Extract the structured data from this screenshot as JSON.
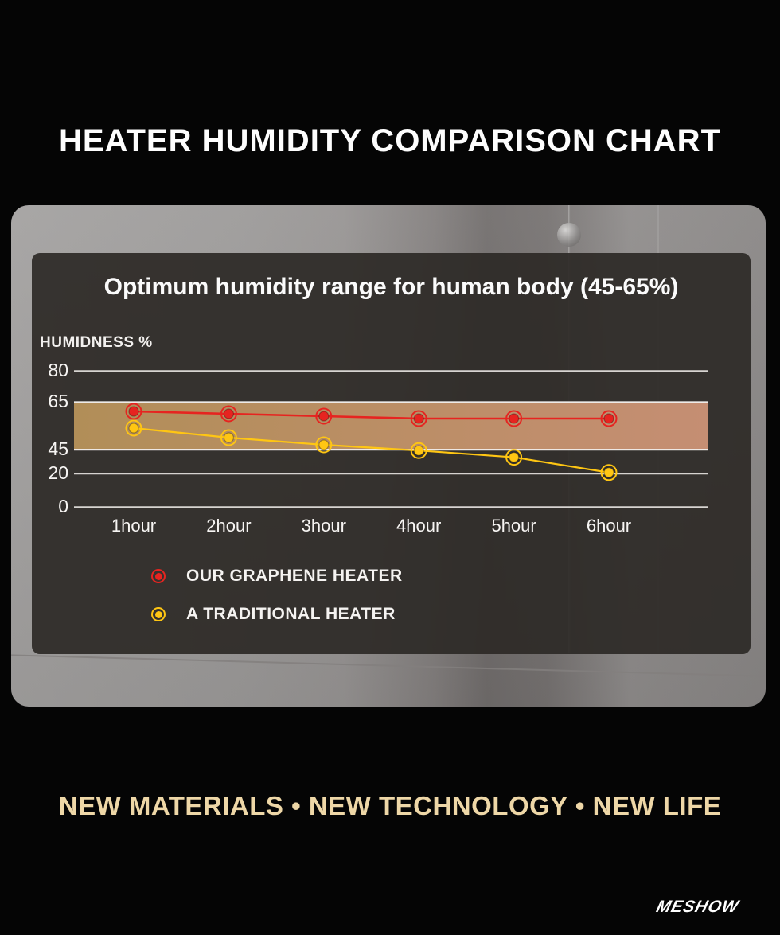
{
  "header": {
    "title": "HEATER HUMIDITY COMPARISON CHART"
  },
  "chart_data": {
    "type": "line",
    "title": "Optimum humidity range for human body (45-65%)",
    "ylabel": "HUMIDNESS %",
    "xlabel": "",
    "categories": [
      "1hour",
      "2hour",
      "3hour",
      "4hour",
      "5hour",
      "6hour"
    ],
    "yticks": [
      80,
      65,
      45,
      20,
      0
    ],
    "ylim": [
      0,
      80
    ],
    "grid": true,
    "legend_position": "bottom-left",
    "optimal_band": {
      "min": 45,
      "max": 65,
      "color_left": "#b18e58",
      "color_right": "#c58e73"
    },
    "series": [
      {
        "name": "OUR GRAPHENE HEATER",
        "color": "#e62420",
        "values": [
          61,
          60,
          59,
          58,
          58,
          58
        ]
      },
      {
        "name": "A TRADITIONAL HEATER",
        "color": "#ffc613",
        "values": [
          54,
          50,
          47,
          44,
          37,
          21
        ]
      }
    ]
  },
  "footer": {
    "tagline": "NEW MATERIALS • NEW TECHNOLOGY • NEW LIFE",
    "brand": "MESHOW"
  },
  "colors": {
    "background": "#050505",
    "panel": "#2d2a27",
    "grid": "#eeebe8",
    "tagline": "#eed7a7",
    "series_red": "#e62420",
    "series_yellow": "#ffc613"
  }
}
